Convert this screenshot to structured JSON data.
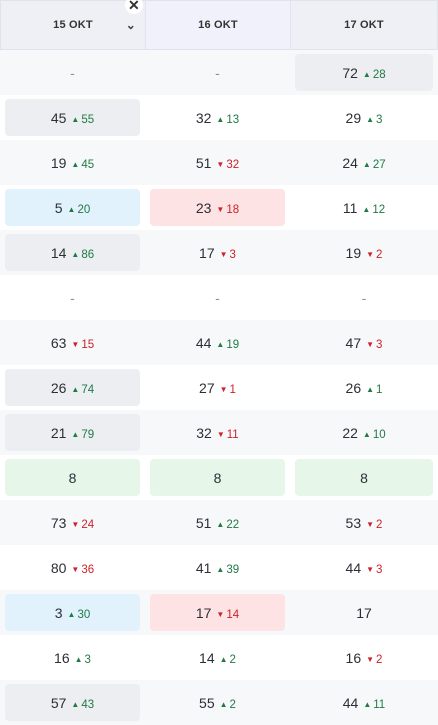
{
  "columns": [
    {
      "label": "15 OKT",
      "has_dropdown": true
    },
    {
      "label": "16 OKT"
    },
    {
      "label": "17 OKT"
    }
  ],
  "close_glyph": "✕",
  "colors": {
    "up": "#1f7a44",
    "down": "#cc2229",
    "gray": "#eceef1",
    "blue": "#e1f2fd",
    "red": "#fde3e3",
    "green": "#e6f6e9"
  },
  "rows": [
    [
      {
        "value": "-"
      },
      {
        "value": "-"
      },
      {
        "value": "72",
        "delta": "28",
        "dir": "up",
        "bg": "gray"
      }
    ],
    [
      {
        "value": "45",
        "delta": "55",
        "dir": "up",
        "bg": "gray"
      },
      {
        "value": "32",
        "delta": "13",
        "dir": "up"
      },
      {
        "value": "29",
        "delta": "3",
        "dir": "up"
      }
    ],
    [
      {
        "value": "19",
        "delta": "45",
        "dir": "up"
      },
      {
        "value": "51",
        "delta": "32",
        "dir": "down"
      },
      {
        "value": "24",
        "delta": "27",
        "dir": "up"
      }
    ],
    [
      {
        "value": "5",
        "delta": "20",
        "dir": "up",
        "bg": "blue"
      },
      {
        "value": "23",
        "delta": "18",
        "dir": "down",
        "bg": "red"
      },
      {
        "value": "11",
        "delta": "12",
        "dir": "up"
      }
    ],
    [
      {
        "value": "14",
        "delta": "86",
        "dir": "up",
        "bg": "gray"
      },
      {
        "value": "17",
        "delta": "3",
        "dir": "down"
      },
      {
        "value": "19",
        "delta": "2",
        "dir": "down"
      }
    ],
    [
      {
        "value": "-"
      },
      {
        "value": "-"
      },
      {
        "value": "-"
      }
    ],
    [
      {
        "value": "63",
        "delta": "15",
        "dir": "down"
      },
      {
        "value": "44",
        "delta": "19",
        "dir": "up"
      },
      {
        "value": "47",
        "delta": "3",
        "dir": "down"
      }
    ],
    [
      {
        "value": "26",
        "delta": "74",
        "dir": "up",
        "bg": "gray"
      },
      {
        "value": "27",
        "delta": "1",
        "dir": "down"
      },
      {
        "value": "26",
        "delta": "1",
        "dir": "up"
      }
    ],
    [
      {
        "value": "21",
        "delta": "79",
        "dir": "up",
        "bg": "gray"
      },
      {
        "value": "32",
        "delta": "11",
        "dir": "down"
      },
      {
        "value": "22",
        "delta": "10",
        "dir": "up"
      }
    ],
    [
      {
        "value": "8",
        "bg": "green"
      },
      {
        "value": "8",
        "bg": "green"
      },
      {
        "value": "8",
        "bg": "green"
      }
    ],
    [
      {
        "value": "73",
        "delta": "24",
        "dir": "down"
      },
      {
        "value": "51",
        "delta": "22",
        "dir": "up"
      },
      {
        "value": "53",
        "delta": "2",
        "dir": "down"
      }
    ],
    [
      {
        "value": "80",
        "delta": "36",
        "dir": "down"
      },
      {
        "value": "41",
        "delta": "39",
        "dir": "up"
      },
      {
        "value": "44",
        "delta": "3",
        "dir": "down"
      }
    ],
    [
      {
        "value": "3",
        "delta": "30",
        "dir": "up",
        "bg": "blue"
      },
      {
        "value": "17",
        "delta": "14",
        "dir": "down",
        "bg": "red"
      },
      {
        "value": "17"
      }
    ],
    [
      {
        "value": "16",
        "delta": "3",
        "dir": "up"
      },
      {
        "value": "14",
        "delta": "2",
        "dir": "up"
      },
      {
        "value": "16",
        "delta": "2",
        "dir": "down"
      }
    ],
    [
      {
        "value": "57",
        "delta": "43",
        "dir": "up",
        "bg": "gray"
      },
      {
        "value": "55",
        "delta": "2",
        "dir": "up"
      },
      {
        "value": "44",
        "delta": "11",
        "dir": "up"
      }
    ]
  ]
}
